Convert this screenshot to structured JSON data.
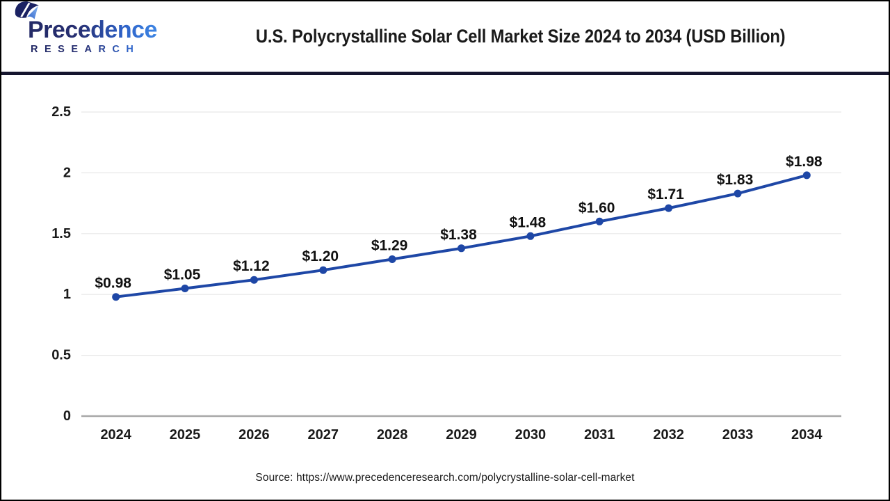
{
  "brand": {
    "name": "Precedence",
    "subname": "RESEARCH"
  },
  "header": {
    "title": "U.S. Polycrystalline Solar Cell Market Size 2024 to 2034 (USD Billion)"
  },
  "source": {
    "text": "Source: https://www.precedenceresearch.com/polycrystalline-solar-cell-market"
  },
  "colors": {
    "accent_blue": "#1e47a6",
    "header_rule": "#15152e",
    "gridline": "#e7e7e7",
    "axis_line": "#a8a8a8",
    "text": "#1a1a1a",
    "logo_dark": "#232a66",
    "logo_blue": "#3f8ae8"
  },
  "chart_data": {
    "type": "line",
    "title": "U.S. Polycrystalline Solar Cell Market Size 2024 to 2034 (USD Billion)",
    "xlabel": "",
    "ylabel": "",
    "categories": [
      "2024",
      "2025",
      "2026",
      "2027",
      "2028",
      "2029",
      "2030",
      "2031",
      "2032",
      "2033",
      "2034"
    ],
    "series": [
      {
        "name": "U.S. Polycrystalline Solar Cell Market Size (USD Billion)",
        "values": [
          0.98,
          1.05,
          1.12,
          1.2,
          1.29,
          1.38,
          1.48,
          1.6,
          1.71,
          1.83,
          1.98
        ]
      }
    ],
    "data_labels": [
      "$0.98",
      "$1.05",
      "$1.12",
      "$1.20",
      "$1.29",
      "$1.38",
      "$1.48",
      "$1.60",
      "$1.71",
      "$1.83",
      "$1.98"
    ],
    "yticks": [
      0,
      0.5,
      1,
      1.5,
      2,
      2.5
    ],
    "ytick_labels": [
      "0",
      "0.5",
      "1",
      "1.5",
      "2",
      "2.5"
    ],
    "ylim": [
      0,
      2.5
    ],
    "grid": true,
    "legend": false,
    "line_color": "#1e47a6",
    "marker": "circle"
  }
}
